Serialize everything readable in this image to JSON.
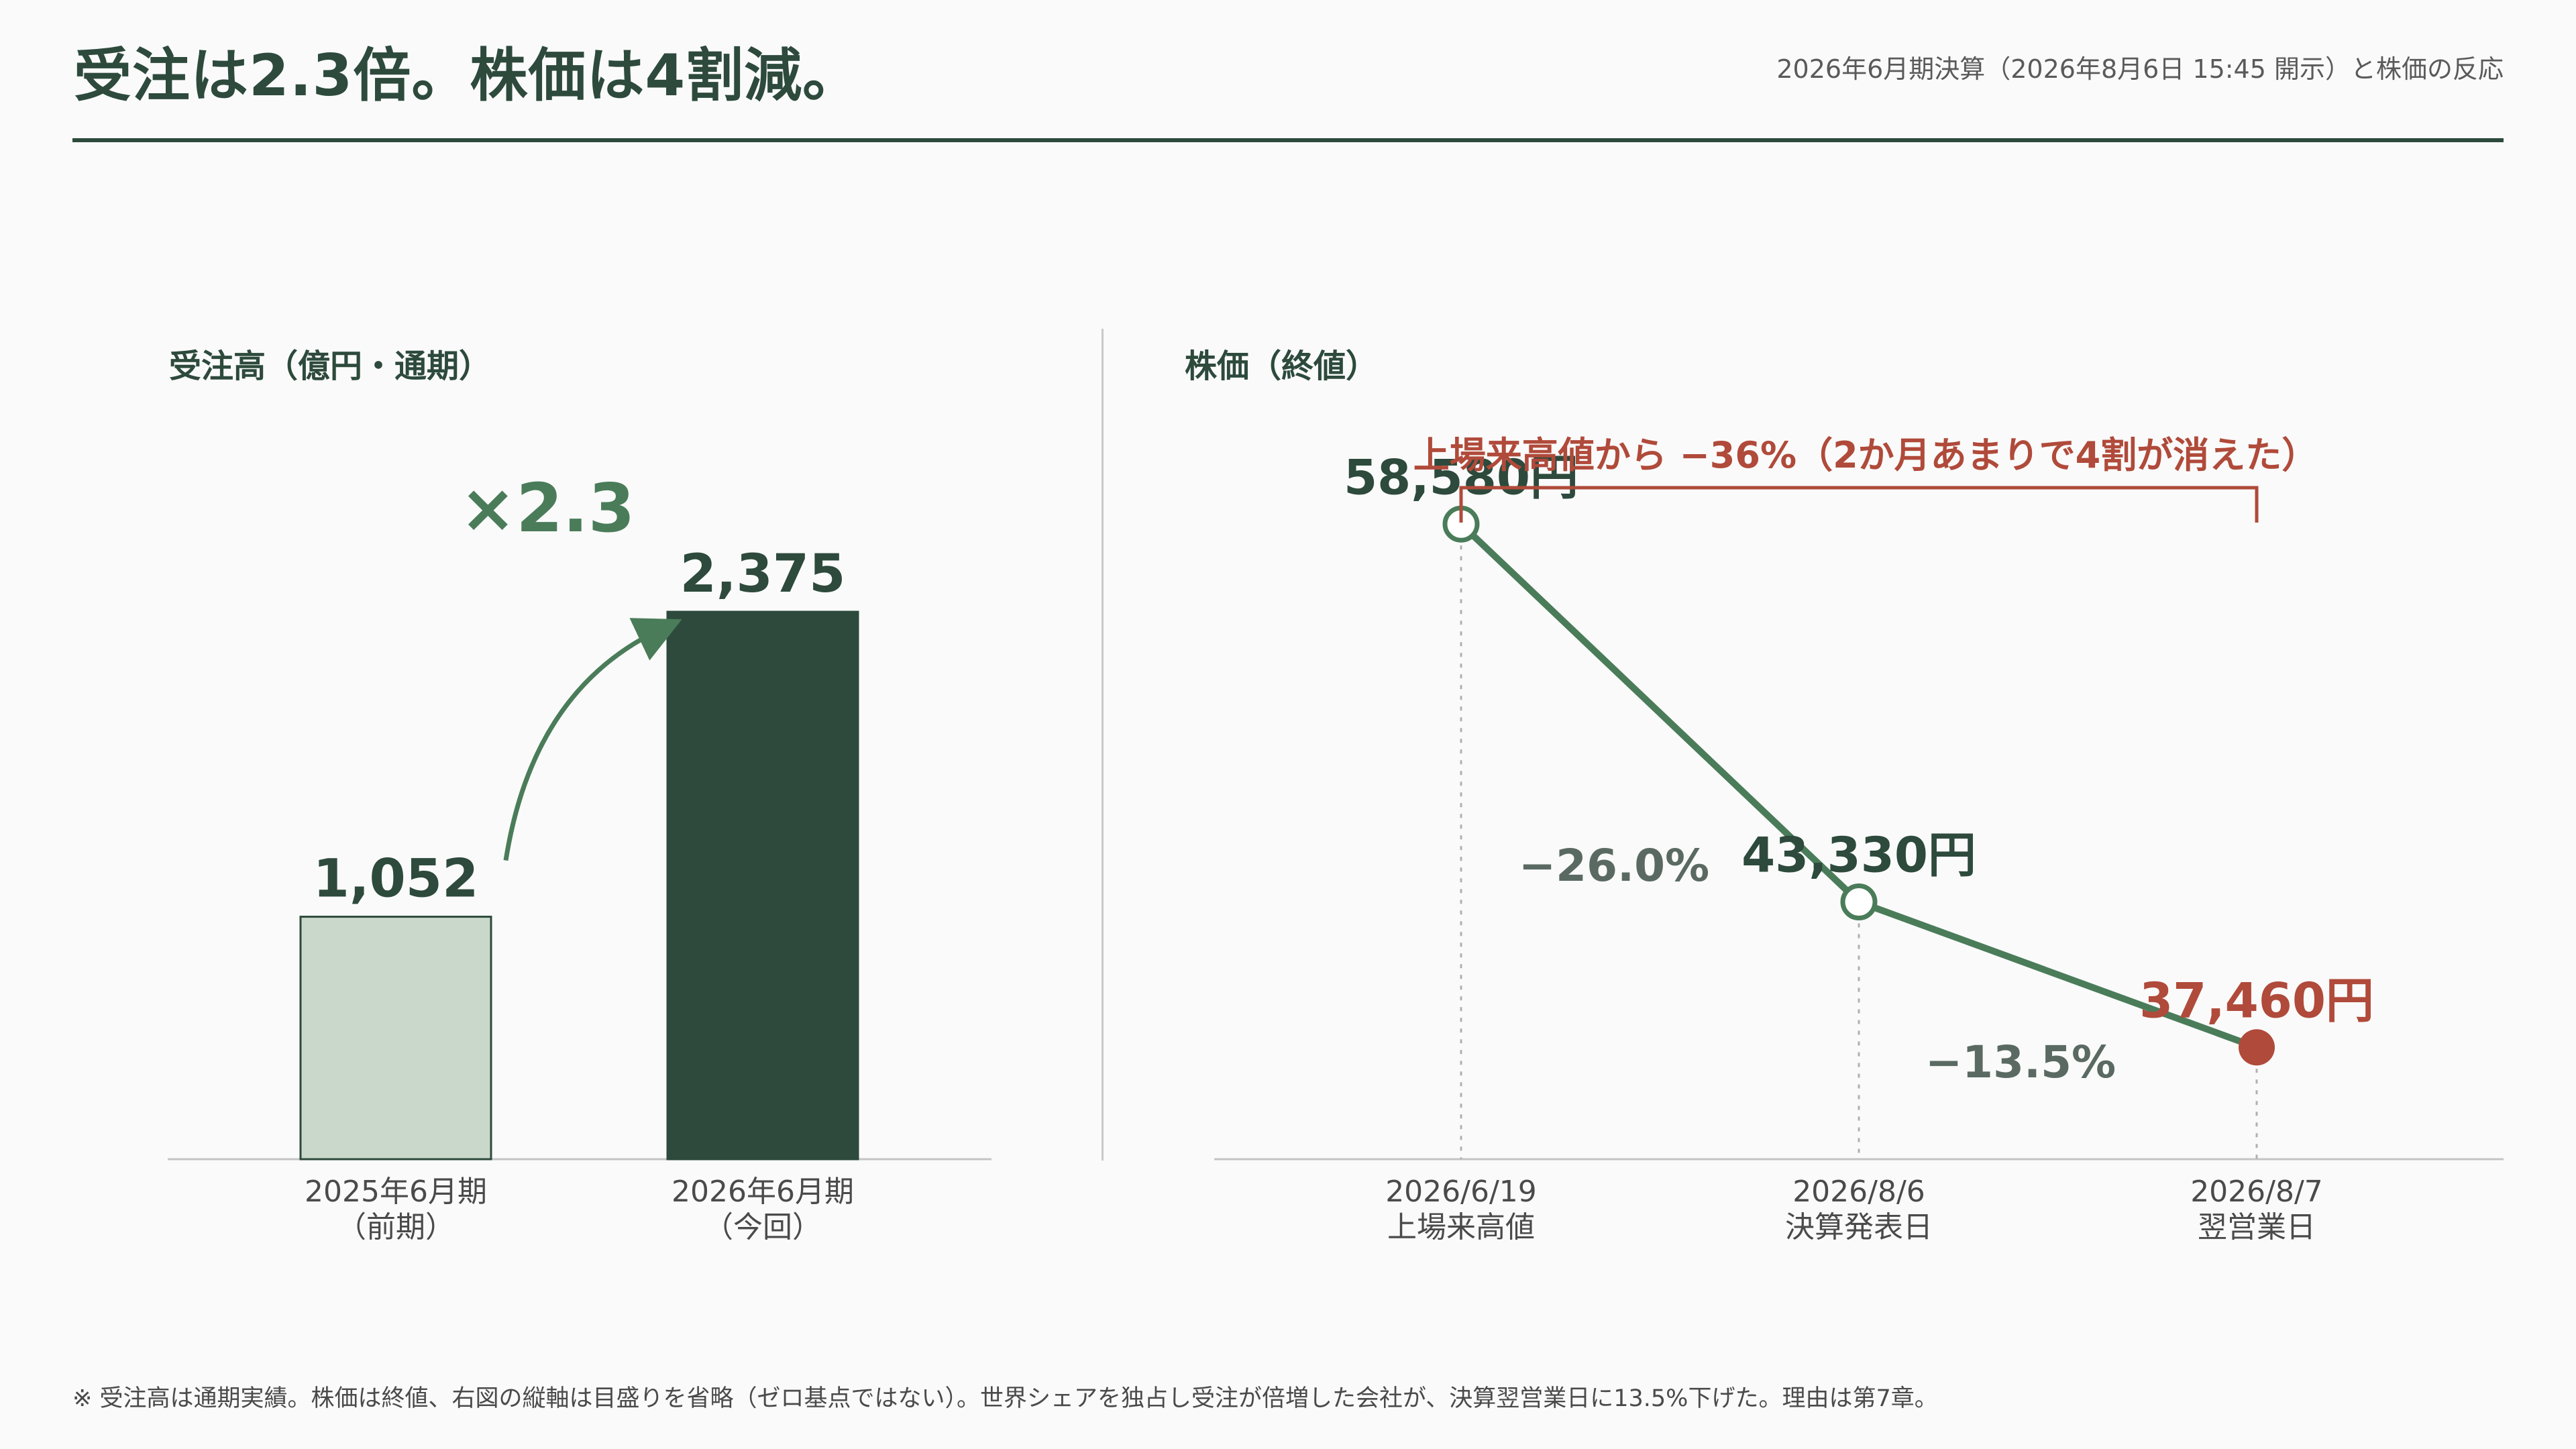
{
  "title": "受注は2.3倍。株価は4割減。",
  "subtitle": "2026年6月期決算（2026年8月6日 15:45 開示）と株価の反応",
  "footnote": "※ 受注高は通期実績。株価は終値、右図の縦軸は目盛りを省略（ゼロ基点ではない）。世界シェアを独占し受注が倍増した会社が、決算翌営業日に13.5%下げた。理由は第7章。",
  "colors": {
    "primary": "#2d4a3c",
    "bar_light": "#c9d8cb",
    "line": "#4a7c59",
    "accent_red": "#b04a3a",
    "pct_gray": "#5a6a62"
  },
  "chart_data": [
    {
      "type": "bar",
      "title": "受注高（億円・通期）",
      "categories": [
        "2025年6月期",
        "2026年6月期"
      ],
      "category_sublabels": [
        "（前期）",
        "（今回）"
      ],
      "values": [
        1052,
        2375
      ],
      "value_labels": [
        "1,052",
        "2,375"
      ],
      "ylim": [
        0,
        2375
      ],
      "annotation": "×2.3",
      "colors": [
        "#c9d8cb",
        "#2d4a3c"
      ]
    },
    {
      "type": "line",
      "title": "株価（終値）",
      "x": [
        "2026/6/19",
        "2026/8/6",
        "2026/8/7"
      ],
      "x_sublabels": [
        "上場来高値",
        "決算発表日",
        "翌営業日"
      ],
      "y": [
        58580,
        43330,
        37460
      ],
      "value_labels": [
        "58,580円",
        "43,330円",
        "37,460円"
      ],
      "segment_changes": [
        "−26.0%",
        "−13.5%"
      ],
      "bracket_label": "上場来高値から −36%（2か月あまりで4割が消えた）",
      "ylim": [
        33000,
        62000
      ],
      "grid": false
    }
  ]
}
